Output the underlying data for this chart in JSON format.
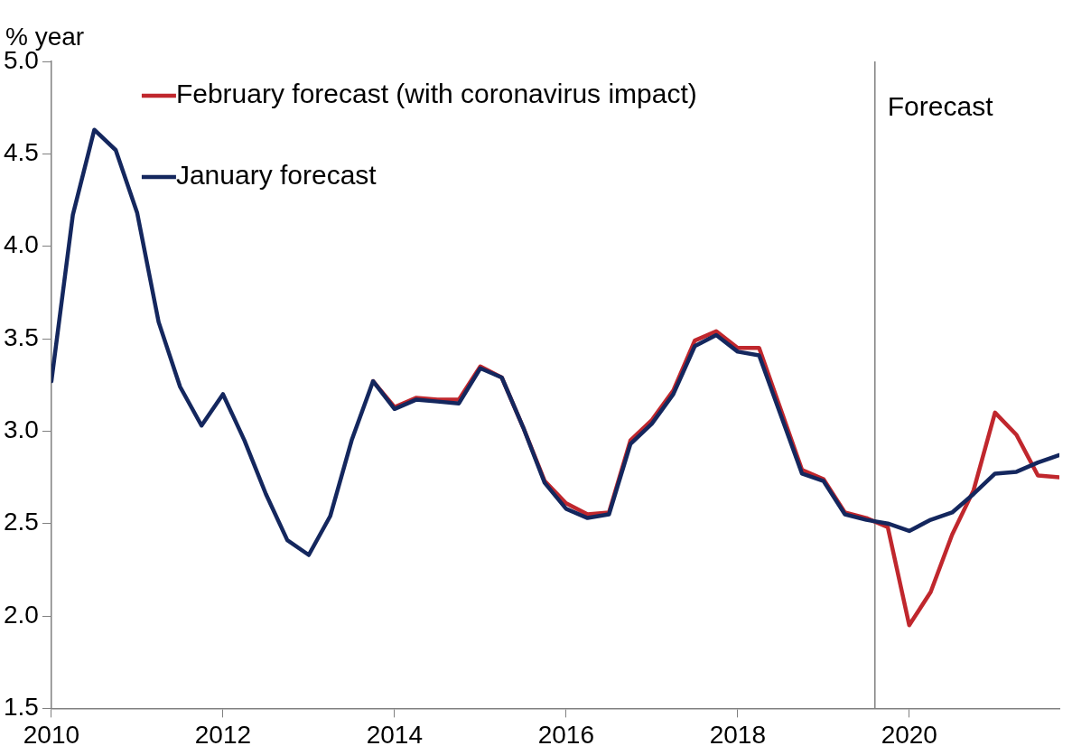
{
  "chart_data": {
    "type": "line",
    "ylabel": "% year",
    "legend": "top left",
    "marker": "none",
    "line_style": "solid",
    "grid": false,
    "x": [
      2010,
      2010.25,
      2010.5,
      2010.75,
      2011,
      2011.25,
      2011.5,
      2011.75,
      2012,
      2012.25,
      2012.5,
      2012.75,
      2013,
      2013.25,
      2013.5,
      2013.75,
      2014,
      2014.25,
      2014.5,
      2014.75,
      2015,
      2015.25,
      2015.5,
      2015.75,
      2016,
      2016.25,
      2016.5,
      2016.75,
      2017,
      2017.25,
      2017.5,
      2017.75,
      2018,
      2018.25,
      2018.5,
      2018.75,
      2019,
      2019.25,
      2019.5,
      2019.75,
      2020,
      2020.25,
      2020.5,
      2020.75,
      2021,
      2021.25,
      2021.5,
      2021.75
    ],
    "xlim": [
      2010,
      2021.75
    ],
    "xticks": [
      2010,
      2012,
      2014,
      2016,
      2018,
      2020
    ],
    "ylim": [
      1.5,
      5.0
    ],
    "yticks": [
      {
        "value": 1.5,
        "label": "1.5"
      },
      {
        "value": 2.0,
        "label": "2.0"
      },
      {
        "value": 2.5,
        "label": "2.5"
      },
      {
        "value": 3.0,
        "label": "3.0"
      },
      {
        "value": 3.5,
        "label": "3.5"
      },
      {
        "value": 4.0,
        "label": "4.0"
      },
      {
        "value": 4.5,
        "label": "4.5"
      },
      {
        "value": 5.0,
        "label": "5.0"
      }
    ],
    "series": [
      {
        "name": "February forecast (with coronavirus impact)",
        "color": "#c0272d",
        "values": [
          null,
          null,
          null,
          null,
          null,
          null,
          null,
          null,
          null,
          null,
          null,
          null,
          null,
          null,
          null,
          3.27,
          3.13,
          3.18,
          3.17,
          3.17,
          3.35,
          3.29,
          3.02,
          2.73,
          2.61,
          2.55,
          2.56,
          2.95,
          3.06,
          3.22,
          3.49,
          3.54,
          3.45,
          3.45,
          3.12,
          2.79,
          2.74,
          2.56,
          2.53,
          2.48,
          1.95,
          2.13,
          2.44,
          2.68,
          3.1,
          2.98,
          2.76,
          2.75
        ]
      },
      {
        "name": "January forecast",
        "color": "#14275e",
        "values": [
          3.27,
          4.17,
          4.63,
          4.52,
          4.18,
          3.59,
          3.24,
          3.03,
          3.2,
          2.95,
          2.66,
          2.41,
          2.33,
          2.54,
          2.95,
          3.27,
          3.12,
          3.17,
          3.16,
          3.15,
          3.34,
          3.29,
          3.02,
          2.72,
          2.58,
          2.53,
          2.55,
          2.93,
          3.04,
          3.2,
          3.46,
          3.52,
          3.43,
          3.41,
          3.09,
          2.77,
          2.73,
          2.55,
          2.52,
          2.5,
          2.46,
          2.52,
          2.56,
          2.66,
          2.77,
          2.78,
          2.83,
          2.87
        ]
      }
    ],
    "ref_lines": [
      {
        "axis": "x",
        "value": 2019.6,
        "label": "Forecast",
        "color": "#808080"
      }
    ]
  }
}
